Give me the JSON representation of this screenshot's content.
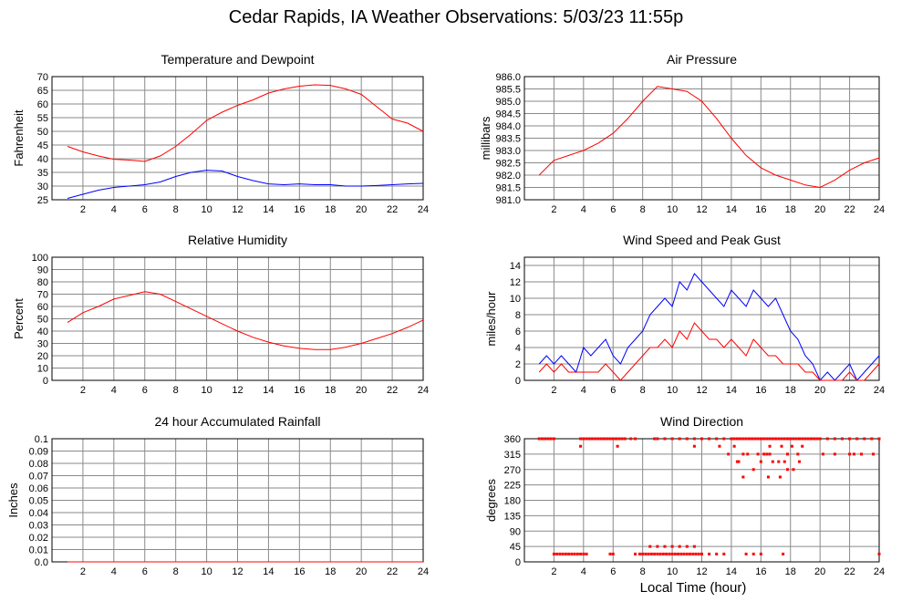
{
  "page": {
    "title": "Cedar Rapids, IA Weather Observations: 5/03/23 11:55p",
    "x_axis_label": "Local Time (hour)"
  },
  "colors": {
    "red": "#ff0000",
    "blue": "#0000ff",
    "grid": "#888888"
  },
  "chart_data": [
    {
      "id": "temp",
      "type": "line",
      "title": "Temperature and Dewpoint",
      "xlabel": "",
      "ylabel": "Fahrenheit",
      "xlim": [
        0,
        24
      ],
      "ylim": [
        25,
        70
      ],
      "xticks": [
        2,
        4,
        6,
        8,
        10,
        12,
        14,
        16,
        18,
        20,
        22,
        24
      ],
      "yticks": [
        25,
        30,
        35,
        40,
        45,
        50,
        55,
        60,
        65,
        70
      ],
      "grid": true,
      "series": [
        {
          "color": "#ff0000",
          "x": [
            1,
            2,
            3,
            4,
            5,
            6,
            7,
            8,
            9,
            10,
            11,
            12,
            13,
            14,
            15,
            16,
            17,
            18,
            19,
            20,
            21,
            22,
            23,
            24
          ],
          "y": [
            44.5,
            42.5,
            41,
            39.8,
            39.5,
            39,
            41,
            44.5,
            49,
            54,
            57,
            59.5,
            61.5,
            64,
            65.5,
            66.5,
            67,
            66.8,
            65.5,
            63.5,
            59,
            54.5,
            53,
            50
          ]
        },
        {
          "color": "#0000ff",
          "x": [
            1,
            2,
            3,
            4,
            5,
            6,
            7,
            8,
            9,
            10,
            11,
            12,
            13,
            14,
            15,
            16,
            17,
            18,
            19,
            20,
            21,
            22,
            23,
            24
          ],
          "y": [
            25.5,
            27,
            28.5,
            29.5,
            30,
            30.5,
            31.5,
            33.5,
            35,
            35.8,
            35.5,
            33.5,
            32,
            30.8,
            30.5,
            30.8,
            30.5,
            30.5,
            30,
            30,
            30.2,
            30.5,
            30.8,
            31
          ]
        }
      ]
    },
    {
      "id": "pres",
      "type": "line",
      "title": "Air Pressure",
      "xlabel": "",
      "ylabel": "millibars",
      "xlim": [
        0,
        24
      ],
      "ylim": [
        981.0,
        986.0
      ],
      "xticks": [
        2,
        4,
        6,
        8,
        10,
        12,
        14,
        16,
        18,
        20,
        22,
        24
      ],
      "yticks": [
        981.0,
        981.5,
        982.0,
        982.5,
        983.0,
        983.5,
        984.0,
        984.5,
        985.0,
        985.5,
        986.0
      ],
      "ytick_labels": [
        "981.0",
        "981.5",
        "982.0",
        "982.5",
        "983.0",
        "983.5",
        "984.0",
        "984.5",
        "985.0",
        "985.5",
        "986.0"
      ],
      "grid": true,
      "series": [
        {
          "color": "#ff0000",
          "x": [
            1,
            2,
            3,
            4,
            5,
            6,
            7,
            8,
            9,
            10,
            11,
            12,
            13,
            14,
            15,
            16,
            17,
            18,
            19,
            20,
            21,
            22,
            23,
            24
          ],
          "y": [
            982.0,
            982.6,
            982.8,
            983.0,
            983.3,
            983.7,
            984.3,
            985.0,
            985.6,
            985.5,
            985.4,
            985.0,
            984.3,
            983.5,
            982.8,
            982.3,
            982.0,
            981.8,
            981.6,
            981.5,
            981.8,
            982.2,
            982.5,
            982.7
          ]
        }
      ]
    },
    {
      "id": "rh",
      "type": "line",
      "title": "Relative Humidity",
      "xlabel": "",
      "ylabel": "Percent",
      "xlim": [
        0,
        24
      ],
      "ylim": [
        0,
        100
      ],
      "xticks": [
        2,
        4,
        6,
        8,
        10,
        12,
        14,
        16,
        18,
        20,
        22,
        24
      ],
      "yticks": [
        0,
        10,
        20,
        30,
        40,
        50,
        60,
        70,
        80,
        90,
        100
      ],
      "grid": true,
      "series": [
        {
          "color": "#ff0000",
          "x": [
            1,
            2,
            3,
            4,
            5,
            6,
            7,
            8,
            9,
            10,
            11,
            12,
            13,
            14,
            15,
            16,
            17,
            18,
            19,
            20,
            21,
            22,
            23,
            24
          ],
          "y": [
            47,
            55,
            60,
            66,
            69,
            72,
            70,
            64,
            58,
            52,
            46,
            40,
            35,
            31,
            28,
            26,
            25,
            25,
            27,
            30,
            34,
            38,
            43,
            49
          ]
        }
      ]
    },
    {
      "id": "wind",
      "type": "line",
      "title": "Wind Speed and Peak Gust",
      "xlabel": "",
      "ylabel": "miles/hour",
      "xlim": [
        0,
        24
      ],
      "ylim": [
        0,
        15
      ],
      "xticks": [
        2,
        4,
        6,
        8,
        10,
        12,
        14,
        16,
        18,
        20,
        22,
        24
      ],
      "yticks": [
        0,
        2,
        4,
        6,
        8,
        10,
        12,
        14
      ],
      "grid": true,
      "series": [
        {
          "color": "#0000ff",
          "x": [
            1,
            1.5,
            2,
            2.5,
            3,
            3.5,
            4,
            4.5,
            5,
            5.5,
            6,
            6.5,
            7,
            7.5,
            8,
            8.5,
            9,
            9.5,
            10,
            10.5,
            11,
            11.5,
            12,
            12.5,
            13,
            13.5,
            14,
            14.5,
            15,
            15.5,
            16,
            16.5,
            17,
            17.5,
            18,
            18.5,
            19,
            19.5,
            20,
            20.5,
            21,
            21.5,
            22,
            22.5,
            23,
            23.5,
            24
          ],
          "y": [
            2,
            3,
            2,
            3,
            2,
            1,
            4,
            3,
            4,
            5,
            3,
            2,
            4,
            5,
            6,
            8,
            9,
            10,
            9,
            12,
            11,
            13,
            12,
            11,
            10,
            9,
            11,
            10,
            9,
            11,
            10,
            9,
            10,
            8,
            6,
            5,
            3,
            2,
            0,
            1,
            0,
            1,
            2,
            0,
            1,
            2,
            3
          ]
        },
        {
          "color": "#ff0000",
          "x": [
            1,
            1.5,
            2,
            2.5,
            3,
            3.5,
            4,
            4.5,
            5,
            5.5,
            6,
            6.5,
            7,
            7.5,
            8,
            8.5,
            9,
            9.5,
            10,
            10.5,
            11,
            11.5,
            12,
            12.5,
            13,
            13.5,
            14,
            14.5,
            15,
            15.5,
            16,
            16.5,
            17,
            17.5,
            18,
            18.5,
            19,
            19.5,
            20,
            20.5,
            21,
            21.5,
            22,
            22.5,
            23,
            23.5,
            24
          ],
          "y": [
            1,
            2,
            1,
            2,
            1,
            1,
            1,
            1,
            1,
            2,
            1,
            0,
            1,
            2,
            3,
            4,
            4,
            5,
            4,
            6,
            5,
            7,
            6,
            5,
            5,
            4,
            5,
            4,
            3,
            5,
            4,
            3,
            3,
            2,
            2,
            2,
            1,
            1,
            0,
            0,
            0,
            0,
            1,
            0,
            0,
            1,
            2
          ]
        }
      ]
    },
    {
      "id": "rain",
      "type": "line",
      "title": "24 hour Accumulated Rainfall",
      "xlabel": "",
      "ylabel": "Inches",
      "xlim": [
        0,
        24
      ],
      "ylim": [
        0,
        0.1
      ],
      "xticks": [
        2,
        4,
        6,
        8,
        10,
        12,
        14,
        16,
        18,
        20,
        22,
        24
      ],
      "yticks": [
        0,
        0.01,
        0.02,
        0.03,
        0.04,
        0.05,
        0.06,
        0.07,
        0.08,
        0.09,
        0.1
      ],
      "ytick_labels": [
        "0.0",
        "0.01",
        "0.02",
        "0.03",
        "0.04",
        "0.05",
        "0.06",
        "0.07",
        "0.08",
        "0.09",
        "0.1"
      ],
      "grid": true,
      "series": [
        {
          "color": "#ff0000",
          "x": [
            1,
            24
          ],
          "y": [
            0,
            0
          ]
        }
      ]
    },
    {
      "id": "wdir",
      "type": "scatter",
      "title": "Wind Direction",
      "xlabel": "",
      "ylabel": "degrees",
      "xlim": [
        0,
        24
      ],
      "ylim": [
        0,
        360
      ],
      "xticks": [
        2,
        4,
        6,
        8,
        10,
        12,
        14,
        16,
        18,
        20,
        22,
        24
      ],
      "yticks": [
        0,
        45,
        90,
        135,
        180,
        225,
        270,
        315,
        360
      ],
      "grid": true,
      "series": [
        {
          "color": "#ff0000",
          "x": [
            1,
            1.2,
            1.4,
            1.6,
            1.8,
            2,
            3.8,
            4,
            4.2,
            4.4,
            4.6,
            4.8,
            5,
            5.2,
            5.4,
            5.6,
            5.8,
            6,
            6.2,
            6.4,
            6.6,
            6.8,
            7.2,
            7.5,
            8.8,
            9,
            9.5,
            10,
            10.5,
            11,
            11.5,
            12,
            12.5,
            13,
            13.5,
            14,
            14.2,
            14.4,
            14.6,
            14.8,
            15,
            15.2,
            15.4,
            15.6,
            15.8,
            16,
            16.2,
            16.4,
            16.6,
            16.8,
            17,
            17.2,
            17.4,
            17.6,
            17.8,
            18,
            18.2,
            18.4,
            18.6,
            18.8,
            19,
            19.2,
            19.4,
            19.6,
            19.8,
            20,
            20.5,
            21,
            21.5,
            22,
            22.5,
            23,
            23.5,
            24,
            11.5,
            13.2,
            14.2,
            16.6,
            17.4,
            18.1,
            18.8,
            3.8,
            6.3,
            14.8,
            15.1,
            16.2,
            16.6,
            17.8,
            18.5,
            20.2,
            21,
            22,
            22.3,
            22.8,
            23.6,
            13.8,
            15.8,
            16.4,
            14.4,
            16.8,
            17.6,
            18.6,
            17.2,
            14.5,
            16,
            15.5,
            17.8,
            18.2,
            14.8,
            16.5,
            17.3,
            2,
            2.2,
            2.4,
            2.6,
            2.8,
            3,
            3.2,
            3.4,
            3.6,
            3.8,
            4,
            4.2,
            5.8,
            6,
            7.5,
            7.8,
            8,
            8.2,
            8.4,
            8.6,
            8.8,
            9,
            9.2,
            9.4,
            9.6,
            9.8,
            10,
            10.2,
            10.4,
            10.6,
            10.8,
            11,
            11.2,
            11.4,
            11.6,
            11.8,
            12,
            12.5,
            13,
            13.5,
            15,
            15.5,
            16,
            17.5,
            24,
            8.5,
            9,
            9.5,
            10,
            10.5,
            11,
            11.5
          ],
          "y": [
            360,
            360,
            360,
            360,
            360,
            360,
            360,
            360,
            360,
            360,
            360,
            360,
            360,
            360,
            360,
            360,
            360,
            360,
            360,
            360,
            360,
            360,
            360,
            360,
            360,
            360,
            360,
            360,
            360,
            360,
            360,
            360,
            360,
            360,
            360,
            360,
            360,
            360,
            360,
            360,
            360,
            360,
            360,
            360,
            360,
            360,
            360,
            360,
            360,
            360,
            360,
            360,
            360,
            360,
            360,
            360,
            360,
            360,
            360,
            360,
            360,
            360,
            360,
            360,
            360,
            360,
            360,
            360,
            360,
            360,
            360,
            360,
            360,
            360,
            338,
            338,
            338,
            338,
            338,
            338,
            338,
            338,
            338,
            315,
            315,
            315,
            315,
            315,
            315,
            315,
            315,
            315,
            315,
            315,
            315,
            315,
            315,
            315,
            293,
            293,
            293,
            293,
            293,
            293,
            293,
            270,
            270,
            270,
            248,
            248,
            248,
            23,
            23,
            23,
            23,
            23,
            23,
            23,
            23,
            23,
            23,
            23,
            23,
            23,
            23,
            23,
            23,
            23,
            23,
            23,
            23,
            23,
            23,
            23,
            23,
            23,
            23,
            23,
            23,
            23,
            23,
            23,
            23,
            23,
            23,
            23,
            23,
            23,
            23,
            23,
            23,
            23,
            23,
            23,
            23,
            23,
            45,
            45,
            45,
            45,
            45,
            45,
            45
          ]
        }
      ]
    }
  ]
}
